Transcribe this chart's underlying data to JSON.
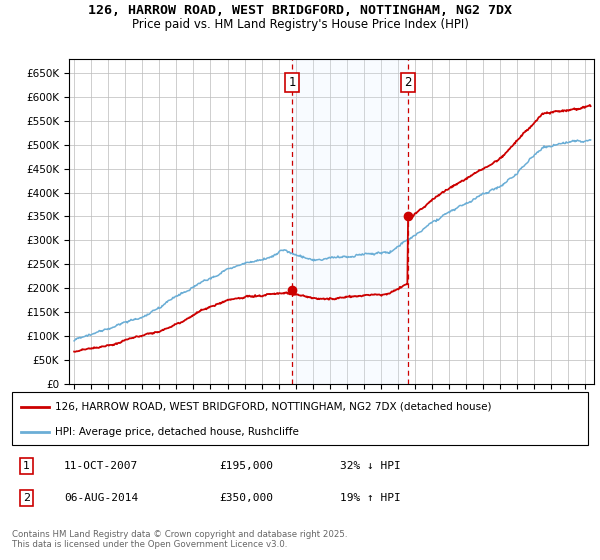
{
  "title_line1": "126, HARROW ROAD, WEST BRIDGFORD, NOTTINGHAM, NG2 7DX",
  "title_line2": "Price paid vs. HM Land Registry's House Price Index (HPI)",
  "ytick_values": [
    0,
    50000,
    100000,
    150000,
    200000,
    250000,
    300000,
    350000,
    400000,
    450000,
    500000,
    550000,
    600000,
    650000
  ],
  "ylim": [
    0,
    680000
  ],
  "xlim_start": 1994.7,
  "xlim_end": 2025.5,
  "sale1_date": 2007.78,
  "sale1_price": 195000,
  "sale2_date": 2014.58,
  "sale2_price": 350000,
  "hpi_line_color": "#6baed6",
  "price_line_color": "#cc0000",
  "dashed_line_color": "#cc0000",
  "shade_color": "#ddeeff",
  "grid_color": "#bbbbbb",
  "bg_color": "#ffffff",
  "legend_label1": "126, HARROW ROAD, WEST BRIDGFORD, NOTTINGHAM, NG2 7DX (detached house)",
  "legend_label2": "HPI: Average price, detached house, Rushcliffe",
  "footer1": "Contains HM Land Registry data © Crown copyright and database right 2025.",
  "footer2": "This data is licensed under the Open Government Licence v3.0.",
  "note1_label": "1",
  "note1_date": "11-OCT-2007",
  "note1_price": "£195,000",
  "note1_hpi": "32% ↓ HPI",
  "note2_label": "2",
  "note2_date": "06-AUG-2014",
  "note2_price": "£350,000",
  "note2_hpi": "19% ↑ HPI"
}
